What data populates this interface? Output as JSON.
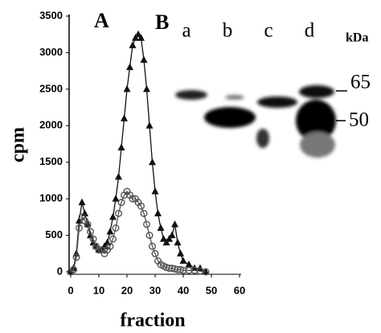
{
  "chart_data": {
    "type": "line",
    "panel_label": "A",
    "xlabel": "fraction",
    "ylabel": "cpm",
    "x": [
      0,
      1,
      2,
      3,
      4,
      5,
      6,
      7,
      8,
      9,
      10,
      11,
      12,
      13,
      14,
      15,
      16,
      17,
      18,
      19,
      20,
      21,
      22,
      23,
      24,
      25,
      26,
      27,
      28,
      29,
      30,
      31,
      32,
      33,
      34,
      35,
      36,
      37,
      38,
      39,
      40,
      42,
      44,
      46,
      48
    ],
    "series": [
      {
        "marker": "triangle",
        "color": "#111111",
        "values": [
          0,
          50,
          250,
          700,
          950,
          800,
          650,
          500,
          400,
          350,
          300,
          300,
          350,
          400,
          550,
          750,
          1000,
          1300,
          1700,
          2100,
          2500,
          2800,
          3100,
          3200,
          3250,
          3200,
          2900,
          2500,
          2000,
          1500,
          1100,
          800,
          600,
          450,
          400,
          450,
          500,
          650,
          400,
          250,
          150,
          100,
          50,
          50,
          0
        ]
      },
      {
        "marker": "circle",
        "color": "#555555",
        "values": [
          0,
          30,
          200,
          600,
          750,
          700,
          650,
          550,
          450,
          350,
          300,
          300,
          250,
          300,
          350,
          450,
          600,
          800,
          950,
          1050,
          1100,
          1050,
          1000,
          1000,
          950,
          900,
          800,
          650,
          500,
          350,
          250,
          150,
          100,
          80,
          60,
          50,
          50,
          40,
          30,
          30,
          20,
          20,
          20,
          10,
          0
        ]
      }
    ],
    "xlim": [
      0,
      60
    ],
    "xticks": [
      0,
      10,
      20,
      30,
      40,
      50,
      60
    ],
    "ylim": [
      0,
      3500
    ],
    "yticks": [
      0,
      500,
      1000,
      1500,
      2000,
      2500,
      3000,
      3500
    ]
  },
  "gel": {
    "panel_label": "B",
    "lanes": [
      "a",
      "b",
      "c",
      "d"
    ],
    "unit": "kDa",
    "markers": [
      65,
      50
    ]
  }
}
